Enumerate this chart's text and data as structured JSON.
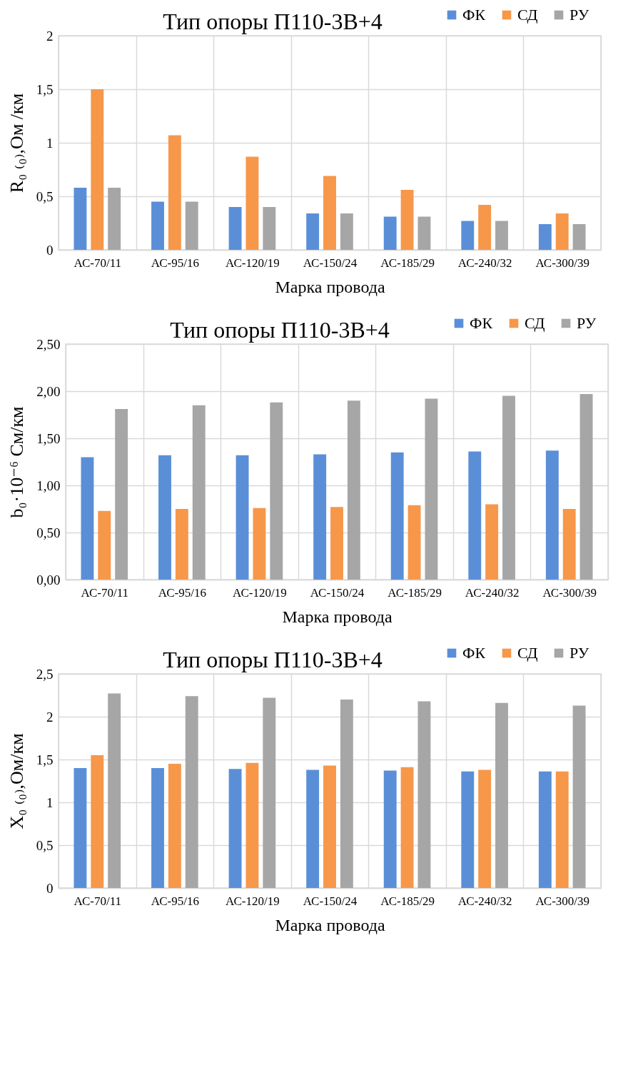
{
  "chart_data": [
    {
      "type": "bar",
      "title": "Тип опоры П110-3В+4",
      "xlabel": "Марка провода",
      "ylabel": "R₀ ₍₀₎,Ом /км",
      "categories": [
        "АС-70/11",
        "АС-95/16",
        "АС-120/19",
        "АС-150/24",
        "АС-185/29",
        "АС-240/32",
        "АС-300/39"
      ],
      "series": [
        {
          "name": "ФК",
          "color": "#5a8fd8",
          "values": [
            0.58,
            0.45,
            0.4,
            0.34,
            0.31,
            0.27,
            0.24
          ]
        },
        {
          "name": "СД",
          "color": "#f7974a",
          "values": [
            1.5,
            1.07,
            0.87,
            0.69,
            0.56,
            0.42,
            0.34
          ]
        },
        {
          "name": "РУ",
          "color": "#a6a6a6",
          "values": [
            0.58,
            0.45,
            0.4,
            0.34,
            0.31,
            0.27,
            0.24
          ]
        }
      ],
      "ylim": [
        0,
        2
      ],
      "yticks": [
        0,
        {
          "value": 0.5,
          "label": "0,5"
        },
        1,
        {
          "value": 1.5,
          "label": "1,5"
        },
        2
      ],
      "grid": true,
      "legend": "top right"
    },
    {
      "type": "bar",
      "title": "Тип опоры П110-3В+4",
      "xlabel": "Марка провода",
      "ylabel": "b₀·10⁻⁶ См/км",
      "categories": [
        "АС-70/11",
        "АС-95/16",
        "АС-120/19",
        "АС-150/24",
        "АС-185/29",
        "АС-240/32",
        "АС-300/39"
      ],
      "series": [
        {
          "name": "ФК",
          "color": "#5a8fd8",
          "values": [
            1.3,
            1.32,
            1.32,
            1.33,
            1.35,
            1.36,
            1.37
          ]
        },
        {
          "name": "СД",
          "color": "#f7974a",
          "values": [
            0.73,
            0.75,
            0.76,
            0.77,
            0.79,
            0.8,
            0.75
          ]
        },
        {
          "name": "РУ",
          "color": "#a6a6a6",
          "values": [
            1.81,
            1.85,
            1.88,
            1.9,
            1.92,
            1.95,
            1.97
          ]
        }
      ],
      "ylim": [
        0,
        2.5
      ],
      "yticks": [
        {
          "value": 0,
          "label": "0,00"
        },
        {
          "value": 0.5,
          "label": "0,50"
        },
        {
          "value": 1,
          "label": "1,00"
        },
        {
          "value": 1.5,
          "label": "1,50"
        },
        {
          "value": 2,
          "label": "2,00"
        },
        {
          "value": 2.5,
          "label": "2,50"
        }
      ],
      "grid": true,
      "legend": "top right"
    },
    {
      "type": "bar",
      "title": "Тип опоры П110-3В+4",
      "xlabel": "Марка провода",
      "ylabel": "X₀ ₍₀₎,Ом/км",
      "categories": [
        "АС-70/11",
        "АС-95/16",
        "АС-120/19",
        "АС-150/24",
        "АС-185/29",
        "АС-240/32",
        "АС-300/39"
      ],
      "series": [
        {
          "name": "ФК",
          "color": "#5a8fd8",
          "values": [
            1.4,
            1.4,
            1.39,
            1.38,
            1.37,
            1.36,
            1.36
          ]
        },
        {
          "name": "СД",
          "color": "#f7974a",
          "values": [
            1.55,
            1.45,
            1.46,
            1.43,
            1.41,
            1.38,
            1.36
          ]
        },
        {
          "name": "РУ",
          "color": "#a6a6a6",
          "values": [
            2.27,
            2.24,
            2.22,
            2.2,
            2.18,
            2.16,
            2.13
          ]
        }
      ],
      "ylim": [
        0,
        2.5
      ],
      "yticks": [
        0,
        {
          "value": 0.5,
          "label": "0,5"
        },
        1,
        {
          "value": 1.5,
          "label": "1,5"
        },
        2,
        {
          "value": 2.5,
          "label": "2,5"
        }
      ],
      "grid": true,
      "legend": "top right"
    }
  ]
}
